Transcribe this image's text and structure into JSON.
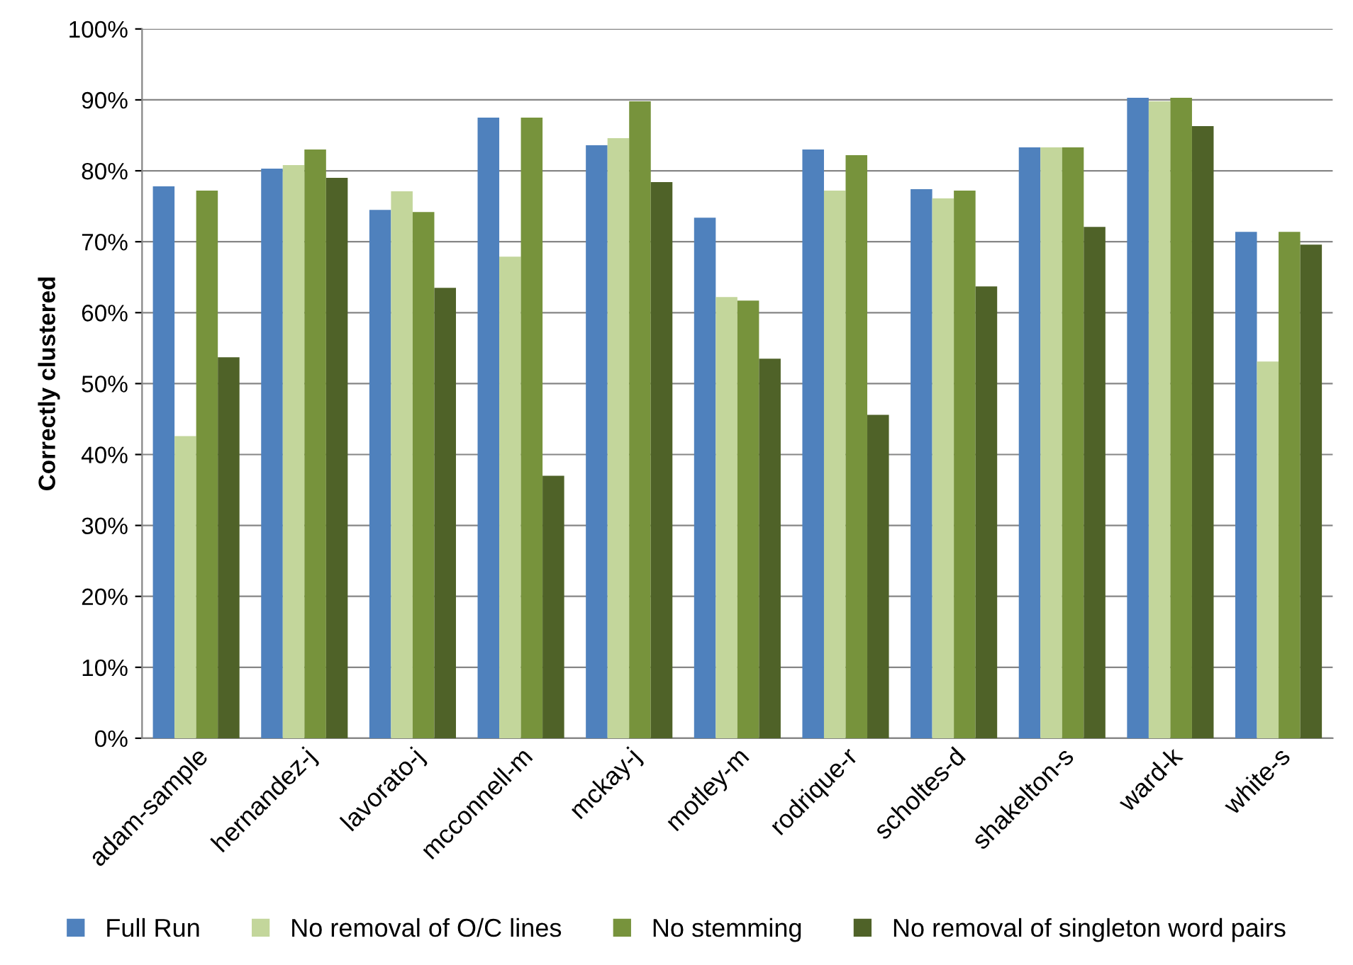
{
  "chart_data": {
    "type": "bar",
    "ylabel": "Correctly clustered",
    "categories": [
      "adam-sample",
      "hernandez-j",
      "lavorato-j",
      "mcconnell-m",
      "mckay-j",
      "motley-m",
      "rodrique-r",
      "scholtes-d",
      "shakelton-s",
      "ward-k",
      "white-s"
    ],
    "series": [
      {
        "name": "Full Run",
        "color": "#4f81bd",
        "values": [
          77.8,
          80.3,
          74.5,
          87.5,
          83.6,
          73.4,
          83.0,
          77.4,
          83.3,
          90.3,
          71.4
        ]
      },
      {
        "name": "No removal of O/C lines",
        "color": "#c3d69b",
        "values": [
          42.6,
          80.8,
          77.1,
          67.9,
          84.6,
          62.2,
          77.2,
          76.1,
          83.3,
          89.8,
          53.1
        ]
      },
      {
        "name": "No stemming",
        "color": "#77933c",
        "values": [
          77.2,
          83.0,
          74.2,
          87.5,
          89.8,
          61.7,
          82.2,
          77.2,
          83.3,
          90.3,
          71.4
        ]
      },
      {
        "name": "No removal of singleton word pairs",
        "color": "#4f6228",
        "values": [
          53.7,
          79.0,
          63.5,
          37.0,
          78.4,
          53.5,
          45.6,
          63.7,
          72.1,
          86.3,
          69.6
        ]
      }
    ],
    "ylim": [
      0,
      100
    ],
    "yticks": [
      {
        "value": 0,
        "label": "0%"
      },
      {
        "value": 10,
        "label": "10%"
      },
      {
        "value": 20,
        "label": "20%"
      },
      {
        "value": 30,
        "label": "30%"
      },
      {
        "value": 40,
        "label": "40%"
      },
      {
        "value": 50,
        "label": "50%"
      },
      {
        "value": 60,
        "label": "60%"
      },
      {
        "value": 70,
        "label": "70%"
      },
      {
        "value": 80,
        "label": "80%"
      },
      {
        "value": 90,
        "label": "90%"
      },
      {
        "value": 100,
        "label": "100%"
      }
    ],
    "grid": "y",
    "legend": "bottom"
  }
}
